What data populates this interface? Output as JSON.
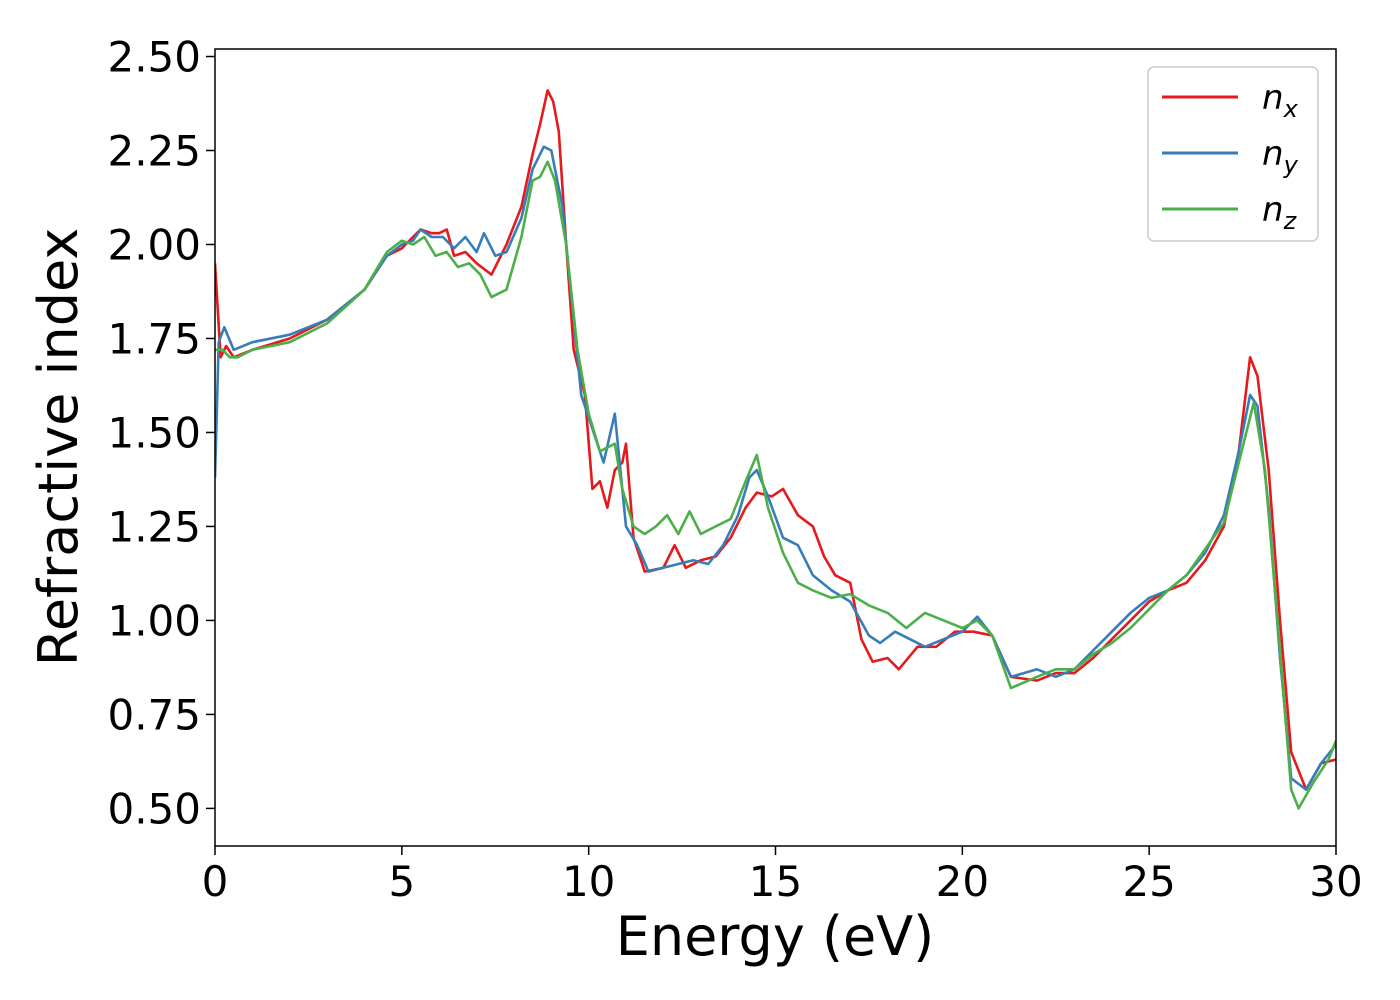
{
  "chart_data": {
    "type": "line",
    "xlabel": "Energy (eV)",
    "ylabel": "Refractive index",
    "xlim": [
      0,
      30
    ],
    "ylim": [
      0.4,
      2.52
    ],
    "xticks": [
      "0",
      "5",
      "10",
      "15",
      "20",
      "25",
      "30"
    ],
    "yticks": [
      "0.50",
      "0.75",
      "1.00",
      "1.25",
      "1.50",
      "1.75",
      "2.00",
      "2.25",
      "2.50"
    ],
    "grid": false,
    "legend_position": "top-right",
    "series": [
      {
        "name": "n",
        "sub": "x",
        "color": "#e41a1c",
        "points": [
          [
            0,
            1.95
          ],
          [
            0.15,
            1.7
          ],
          [
            0.3,
            1.73
          ],
          [
            0.5,
            1.7
          ],
          [
            1,
            1.72
          ],
          [
            2,
            1.75
          ],
          [
            3,
            1.8
          ],
          [
            4,
            1.88
          ],
          [
            4.6,
            1.97
          ],
          [
            5,
            1.99
          ],
          [
            5.3,
            2.02
          ],
          [
            5.5,
            2.04
          ],
          [
            5.8,
            2.03
          ],
          [
            6,
            2.03
          ],
          [
            6.2,
            2.04
          ],
          [
            6.4,
            1.97
          ],
          [
            6.7,
            1.98
          ],
          [
            7,
            1.95
          ],
          [
            7.4,
            1.92
          ],
          [
            7.8,
            2.0
          ],
          [
            8.2,
            2.1
          ],
          [
            8.5,
            2.24
          ],
          [
            8.7,
            2.32
          ],
          [
            8.9,
            2.41
          ],
          [
            9.05,
            2.38
          ],
          [
            9.2,
            2.3
          ],
          [
            9.4,
            2.0
          ],
          [
            9.6,
            1.72
          ],
          [
            9.9,
            1.6
          ],
          [
            10.1,
            1.35
          ],
          [
            10.3,
            1.37
          ],
          [
            10.5,
            1.3
          ],
          [
            10.7,
            1.4
          ],
          [
            10.9,
            1.42
          ],
          [
            11.0,
            1.47
          ],
          [
            11.2,
            1.22
          ],
          [
            11.5,
            1.13
          ],
          [
            12,
            1.14
          ],
          [
            12.3,
            1.2
          ],
          [
            12.6,
            1.14
          ],
          [
            13,
            1.16
          ],
          [
            13.4,
            1.17
          ],
          [
            13.8,
            1.22
          ],
          [
            14.2,
            1.3
          ],
          [
            14.5,
            1.34
          ],
          [
            14.9,
            1.33
          ],
          [
            15.2,
            1.35
          ],
          [
            15.6,
            1.28
          ],
          [
            16,
            1.25
          ],
          [
            16.3,
            1.17
          ],
          [
            16.6,
            1.12
          ],
          [
            17,
            1.1
          ],
          [
            17.3,
            0.95
          ],
          [
            17.6,
            0.89
          ],
          [
            18,
            0.9
          ],
          [
            18.3,
            0.87
          ],
          [
            18.8,
            0.93
          ],
          [
            19.3,
            0.93
          ],
          [
            19.8,
            0.97
          ],
          [
            20.3,
            0.97
          ],
          [
            20.8,
            0.96
          ],
          [
            21.3,
            0.85
          ],
          [
            22,
            0.84
          ],
          [
            22.5,
            0.86
          ],
          [
            23,
            0.86
          ],
          [
            23.5,
            0.9
          ],
          [
            24,
            0.95
          ],
          [
            24.5,
            1.0
          ],
          [
            25,
            1.05
          ],
          [
            25.5,
            1.08
          ],
          [
            26,
            1.1
          ],
          [
            26.5,
            1.16
          ],
          [
            27,
            1.25
          ],
          [
            27.4,
            1.45
          ],
          [
            27.7,
            1.7
          ],
          [
            27.9,
            1.65
          ],
          [
            28.2,
            1.4
          ],
          [
            28.5,
            1.0
          ],
          [
            28.8,
            0.65
          ],
          [
            29.2,
            0.55
          ],
          [
            29.6,
            0.62
          ],
          [
            30,
            0.63
          ]
        ]
      },
      {
        "name": "n",
        "sub": "y",
        "color": "#377eb8",
        "points": [
          [
            0,
            1.38
          ],
          [
            0.1,
            1.74
          ],
          [
            0.25,
            1.78
          ],
          [
            0.5,
            1.72
          ],
          [
            1,
            1.74
          ],
          [
            2,
            1.76
          ],
          [
            3,
            1.8
          ],
          [
            4,
            1.88
          ],
          [
            4.6,
            1.97
          ],
          [
            5,
            2.0
          ],
          [
            5.3,
            2.01
          ],
          [
            5.5,
            2.04
          ],
          [
            5.8,
            2.02
          ],
          [
            6.1,
            2.02
          ],
          [
            6.4,
            1.99
          ],
          [
            6.7,
            2.02
          ],
          [
            7,
            1.98
          ],
          [
            7.2,
            2.03
          ],
          [
            7.5,
            1.97
          ],
          [
            7.8,
            1.98
          ],
          [
            8.2,
            2.07
          ],
          [
            8.5,
            2.2
          ],
          [
            8.8,
            2.26
          ],
          [
            9.0,
            2.25
          ],
          [
            9.3,
            2.1
          ],
          [
            9.5,
            1.9
          ],
          [
            9.8,
            1.6
          ],
          [
            10.2,
            1.48
          ],
          [
            10.4,
            1.42
          ],
          [
            10.7,
            1.55
          ],
          [
            11.0,
            1.25
          ],
          [
            11.3,
            1.2
          ],
          [
            11.6,
            1.13
          ],
          [
            12,
            1.14
          ],
          [
            12.4,
            1.15
          ],
          [
            12.8,
            1.16
          ],
          [
            13.2,
            1.15
          ],
          [
            13.6,
            1.2
          ],
          [
            14,
            1.28
          ],
          [
            14.3,
            1.38
          ],
          [
            14.5,
            1.4
          ],
          [
            14.8,
            1.33
          ],
          [
            15.2,
            1.22
          ],
          [
            15.6,
            1.2
          ],
          [
            16,
            1.12
          ],
          [
            16.5,
            1.08
          ],
          [
            17,
            1.05
          ],
          [
            17.5,
            0.96
          ],
          [
            17.8,
            0.94
          ],
          [
            18.2,
            0.97
          ],
          [
            18.6,
            0.95
          ],
          [
            19,
            0.93
          ],
          [
            19.5,
            0.95
          ],
          [
            20,
            0.97
          ],
          [
            20.4,
            1.01
          ],
          [
            20.8,
            0.96
          ],
          [
            21.3,
            0.85
          ],
          [
            22,
            0.87
          ],
          [
            22.5,
            0.85
          ],
          [
            23,
            0.87
          ],
          [
            23.5,
            0.92
          ],
          [
            24,
            0.97
          ],
          [
            24.5,
            1.02
          ],
          [
            25,
            1.06
          ],
          [
            25.5,
            1.08
          ],
          [
            26,
            1.12
          ],
          [
            26.5,
            1.18
          ],
          [
            27,
            1.28
          ],
          [
            27.4,
            1.45
          ],
          [
            27.7,
            1.6
          ],
          [
            27.9,
            1.57
          ],
          [
            28.2,
            1.3
          ],
          [
            28.5,
            0.9
          ],
          [
            28.8,
            0.58
          ],
          [
            29.2,
            0.55
          ],
          [
            29.6,
            0.62
          ],
          [
            30,
            0.67
          ]
        ]
      },
      {
        "name": "n",
        "sub": "z",
        "color": "#4daf4a",
        "points": [
          [
            0,
            1.72
          ],
          [
            0.2,
            1.72
          ],
          [
            0.4,
            1.7
          ],
          [
            0.6,
            1.7
          ],
          [
            1,
            1.72
          ],
          [
            2,
            1.74
          ],
          [
            3,
            1.79
          ],
          [
            4,
            1.88
          ],
          [
            4.6,
            1.98
          ],
          [
            5,
            2.01
          ],
          [
            5.3,
            2.0
          ],
          [
            5.6,
            2.02
          ],
          [
            5.9,
            1.97
          ],
          [
            6.2,
            1.98
          ],
          [
            6.5,
            1.94
          ],
          [
            6.8,
            1.95
          ],
          [
            7.1,
            1.92
          ],
          [
            7.4,
            1.86
          ],
          [
            7.8,
            1.88
          ],
          [
            8.2,
            2.02
          ],
          [
            8.5,
            2.17
          ],
          [
            8.7,
            2.18
          ],
          [
            8.9,
            2.22
          ],
          [
            9.1,
            2.17
          ],
          [
            9.4,
            2.0
          ],
          [
            9.7,
            1.72
          ],
          [
            10,
            1.55
          ],
          [
            10.3,
            1.45
          ],
          [
            10.7,
            1.47
          ],
          [
            10.9,
            1.35
          ],
          [
            11.2,
            1.25
          ],
          [
            11.5,
            1.23
          ],
          [
            11.8,
            1.25
          ],
          [
            12.1,
            1.28
          ],
          [
            12.4,
            1.23
          ],
          [
            12.7,
            1.29
          ],
          [
            13,
            1.23
          ],
          [
            13.4,
            1.25
          ],
          [
            13.8,
            1.27
          ],
          [
            14.2,
            1.37
          ],
          [
            14.5,
            1.44
          ],
          [
            14.8,
            1.3
          ],
          [
            15.2,
            1.18
          ],
          [
            15.6,
            1.1
          ],
          [
            16,
            1.08
          ],
          [
            16.5,
            1.06
          ],
          [
            17,
            1.07
          ],
          [
            17.5,
            1.04
          ],
          [
            18,
            1.02
          ],
          [
            18.5,
            0.98
          ],
          [
            19,
            1.02
          ],
          [
            19.5,
            1.0
          ],
          [
            20,
            0.98
          ],
          [
            20.4,
            1.0
          ],
          [
            20.8,
            0.96
          ],
          [
            21.3,
            0.82
          ],
          [
            22,
            0.85
          ],
          [
            22.5,
            0.87
          ],
          [
            23,
            0.87
          ],
          [
            23.5,
            0.91
          ],
          [
            24,
            0.94
          ],
          [
            24.5,
            0.98
          ],
          [
            25,
            1.03
          ],
          [
            25.5,
            1.08
          ],
          [
            26,
            1.12
          ],
          [
            26.5,
            1.19
          ],
          [
            27,
            1.26
          ],
          [
            27.4,
            1.42
          ],
          [
            27.8,
            1.58
          ],
          [
            28.1,
            1.4
          ],
          [
            28.5,
            0.92
          ],
          [
            28.8,
            0.55
          ],
          [
            29.0,
            0.5
          ],
          [
            29.4,
            0.57
          ],
          [
            29.8,
            0.63
          ],
          [
            30,
            0.68
          ]
        ]
      }
    ]
  }
}
